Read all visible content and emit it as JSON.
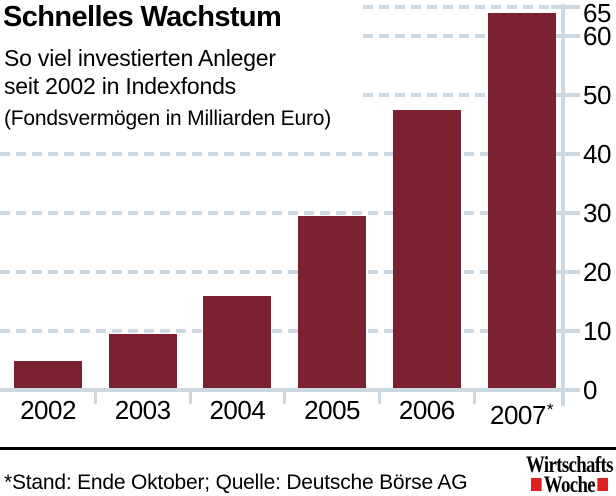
{
  "header": {
    "title": "Schnelles Wachstum",
    "subtitle_line1": "So viel investierten Anleger",
    "subtitle_line2": "seit 2002 in Indexfonds",
    "note": "(Fondsvermögen in Milliarden Euro)"
  },
  "chart_data": {
    "type": "bar",
    "title": "Schnelles Wachstum",
    "subtitle": "So viel investierten Anleger seit 2002 in Indexfonds",
    "ylabel": "Fondsvermögen in Milliarden Euro",
    "categories": [
      "2002",
      "2003",
      "2004",
      "2005",
      "2006",
      "2007*"
    ],
    "values": [
      5,
      9.5,
      16,
      29.5,
      47.5,
      64
    ],
    "ylim": [
      0,
      65
    ],
    "yticks": [
      0,
      10,
      20,
      30,
      40,
      50,
      60,
      65
    ],
    "grid": "dashed-horizontal",
    "axis_side": "right",
    "legend": "none",
    "bar_color": "#7c2130",
    "grid_color": "#ccd9e2"
  },
  "footer": {
    "source": "*Stand: Ende Oktober; Quelle: Deutsche Börse AG",
    "logo_line1": "Wirtschafts",
    "logo_line2": "Woche"
  },
  "colors": {
    "bar": "#7c2130",
    "axis_grid": "#ccd9e2",
    "logo_red": "#e01f1f",
    "text": "#000000",
    "background": "#ffffff"
  }
}
